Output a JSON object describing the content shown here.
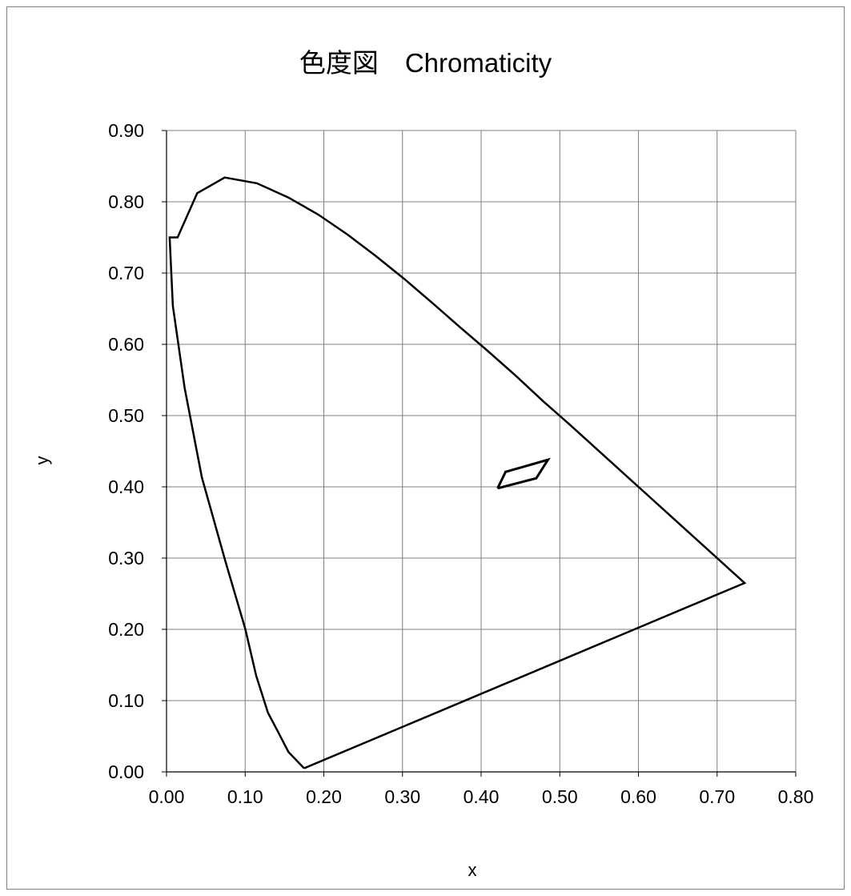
{
  "chart_data": {
    "type": "line",
    "title": "色度図　Chromaticity",
    "xlabel": "x",
    "ylabel": "y",
    "xlim": [
      0,
      0.8
    ],
    "ylim": [
      0,
      0.9
    ],
    "grid": true,
    "xticks": [
      "0.00",
      "0.10",
      "0.20",
      "0.30",
      "0.40",
      "0.50",
      "0.60",
      "0.70",
      "0.80"
    ],
    "yticks": [
      "0.00",
      "0.10",
      "0.20",
      "0.30",
      "0.40",
      "0.50",
      "0.60",
      "0.70",
      "0.80",
      "0.90"
    ],
    "series": [
      {
        "x": [
          0.175,
          0.155,
          0.141,
          0.129,
          0.114,
          0.1,
          0.075,
          0.045,
          0.023,
          0.008,
          0.004,
          0.014,
          0.039,
          0.074,
          0.115,
          0.155,
          0.193,
          0.23,
          0.266,
          0.302,
          0.338,
          0.373,
          0.408,
          0.444,
          0.479,
          0.512,
          0.547,
          0.583,
          0.618,
          0.653,
          0.688,
          0.713,
          0.735,
          0.175
        ],
        "y": [
          0.005,
          0.028,
          0.058,
          0.083,
          0.135,
          0.201,
          0.295,
          0.413,
          0.539,
          0.654,
          0.75,
          0.75,
          0.812,
          0.834,
          0.826,
          0.806,
          0.782,
          0.754,
          0.724,
          0.692,
          0.658,
          0.624,
          0.591,
          0.556,
          0.52,
          0.488,
          0.453,
          0.417,
          0.382,
          0.347,
          0.312,
          0.287,
          0.265,
          0.005
        ]
      },
      {
        "x": [
          0.421,
          0.431,
          0.485,
          0.47,
          0.421
        ],
        "y": [
          0.398,
          0.421,
          0.438,
          0.412,
          0.398
        ]
      }
    ]
  }
}
